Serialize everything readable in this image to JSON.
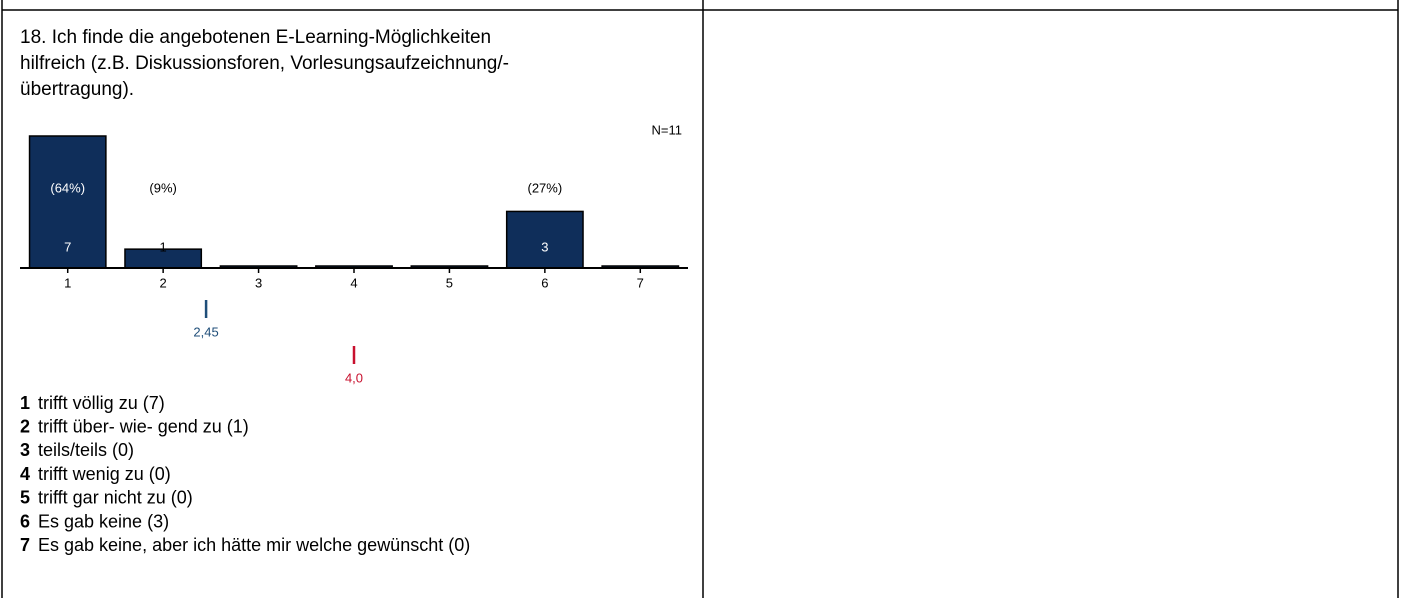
{
  "chart_data": {
    "type": "bar",
    "title": [
      "18. Ich finde die angebotenen E-Learning-Möglichkeiten",
      "hilfreich (z.B. Diskussionsforen, Vorlesungsaufzeichnung/-",
      "übertragung)."
    ],
    "n_label": "N=11",
    "categories": [
      1,
      2,
      3,
      4,
      5,
      6,
      7
    ],
    "values": [
      7,
      1,
      0,
      0,
      0,
      3,
      0
    ],
    "value_labels": [
      "7",
      "1",
      null,
      null,
      null,
      "3",
      null
    ],
    "percent_labels": [
      "(64%)",
      "(9%)",
      null,
      null,
      null,
      "(27%)",
      null
    ],
    "color": "#0f2e5a",
    "ylim": [
      0,
      7
    ],
    "xlim": [
      0.5,
      7.5
    ],
    "markers": [
      {
        "value": 2.45,
        "label": "2,45",
        "color": "#1f4e79"
      },
      {
        "value": 4.0,
        "label": "4,0",
        "color": "#c8102e"
      }
    ],
    "legend_labels": [
      "trifft völlig zu  (7)",
      "trifft über- wie- gend zu  (1)",
      "teils/teils (0)",
      "trifft wenig zu  (0)",
      "trifft gar nicht zu  (0)",
      "Es gab keine (3)",
      "Es gab keine, aber ich hätte mir welche gewünscht (0)"
    ]
  }
}
